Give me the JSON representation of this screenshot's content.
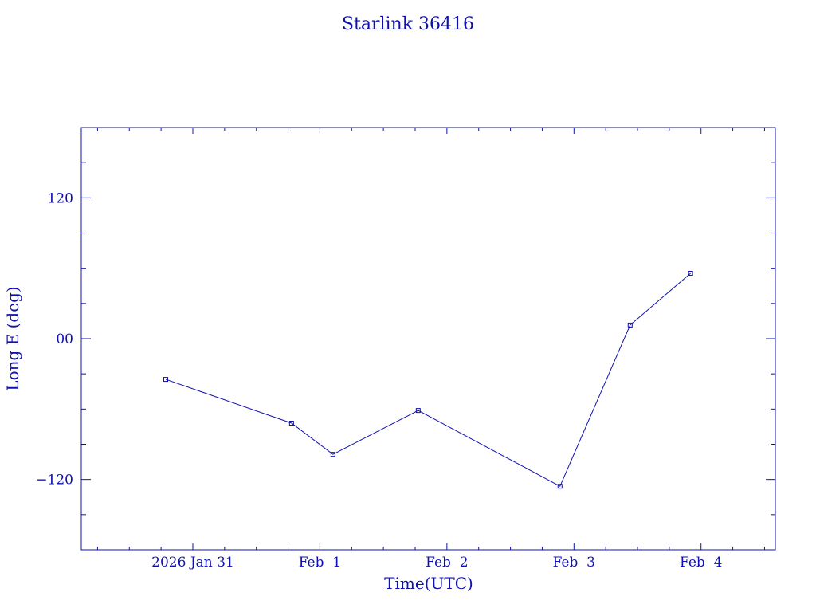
{
  "chart_data": {
    "type": "line",
    "title": "Starlink 36416",
    "xlabel": "Time(UTC)",
    "ylabel": "Long E (deg)",
    "x_units": "days since 2026 Jan 31 00:00 UTC",
    "xlim": [
      -0.878,
      4.585
    ],
    "ylim": [
      -180,
      180
    ],
    "x_ticks": [
      {
        "value": 0,
        "label": "2026 Jan 31"
      },
      {
        "value": 1,
        "label": "Feb  1"
      },
      {
        "value": 2,
        "label": "Feb  2"
      },
      {
        "value": 3,
        "label": "Feb  3"
      },
      {
        "value": 4,
        "label": "Feb  4"
      }
    ],
    "x_minor_step": 0.25,
    "y_ticks": [
      {
        "value": 120,
        "label": "120"
      },
      {
        "value": 0,
        "label": "00"
      },
      {
        "value": -120,
        "label": "−120"
      }
    ],
    "y_minor_step": 30,
    "grid": false,
    "color": "#1010b0",
    "series": [
      {
        "name": "Starlink 36416",
        "x": [
          -0.213,
          0.777,
          1.103,
          1.774,
          2.89,
          3.442,
          3.918
        ],
        "y": [
          -34.7,
          -72.0,
          -98.6,
          -61.2,
          -125.8,
          11.6,
          55.7
        ]
      }
    ]
  }
}
